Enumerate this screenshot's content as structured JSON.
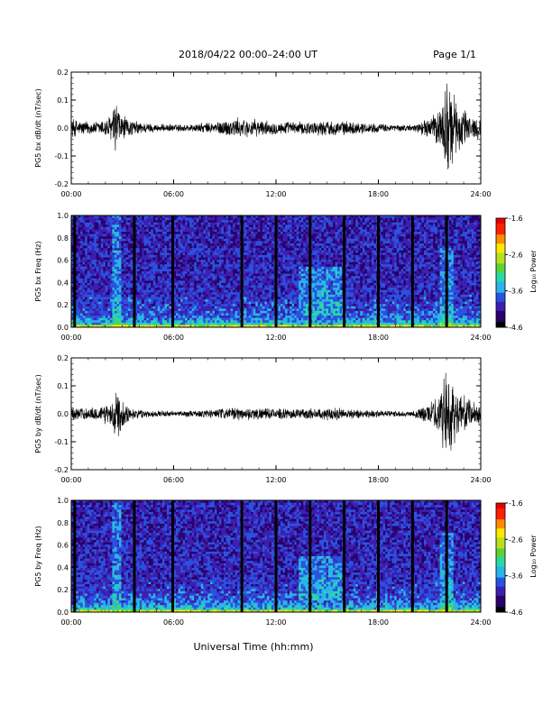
{
  "header": {
    "title": "2018/04/22  00:00–24:00 UT",
    "page": "Page 1/1"
  },
  "footer": {
    "xlabel": "Universal Time (hh:mm)"
  },
  "colorbar": {
    "label": "Log₁₀ Power",
    "ticks": [
      "-1.6",
      "-2.6",
      "-3.6",
      "-4.6"
    ],
    "range": [
      -4.6,
      -1.6
    ],
    "colors": [
      "#000000",
      "#2a006a",
      "#3c1fb0",
      "#2a52e0",
      "#2ab4e8",
      "#29d9a8",
      "#5ad238",
      "#b8e020",
      "#ffe800",
      "#ff8c00",
      "#ff2000",
      "#e80000"
    ]
  },
  "chart_data": [
    {
      "type": "line",
      "ylabel": "PG5 bx dB/dt (nT/sec)",
      "xticks": [
        "00:00",
        "06:00",
        "12:00",
        "18:00",
        "24:00"
      ],
      "yticks": [
        "0.2",
        "0.1",
        "0.0",
        "-0.1",
        "-0.2"
      ],
      "xlim": [
        0,
        24
      ],
      "ylim": [
        -0.2,
        0.2
      ],
      "envelope": [
        {
          "t": 0,
          "amp": 0.04
        },
        {
          "t": 0.5,
          "amp": 0.03
        },
        {
          "t": 1.5,
          "amp": 0.025
        },
        {
          "t": 2.3,
          "amp": 0.05
        },
        {
          "t": 2.65,
          "amp": 0.12
        },
        {
          "t": 2.85,
          "amp": 0.06
        },
        {
          "t": 3.5,
          "amp": 0.03
        },
        {
          "t": 5.0,
          "amp": 0.015
        },
        {
          "t": 7.0,
          "amp": 0.015
        },
        {
          "t": 8.5,
          "amp": 0.025
        },
        {
          "t": 9.5,
          "amp": 0.04
        },
        {
          "t": 10.5,
          "amp": 0.035
        },
        {
          "t": 12.0,
          "amp": 0.025
        },
        {
          "t": 13.5,
          "amp": 0.025
        },
        {
          "t": 15.0,
          "amp": 0.03
        },
        {
          "t": 16.5,
          "amp": 0.025
        },
        {
          "t": 18.5,
          "amp": 0.015
        },
        {
          "t": 20.0,
          "amp": 0.012
        },
        {
          "t": 21.0,
          "amp": 0.04
        },
        {
          "t": 21.6,
          "amp": 0.08
        },
        {
          "t": 22.0,
          "amp": 0.2
        },
        {
          "t": 22.5,
          "amp": 0.12
        },
        {
          "t": 23.2,
          "amp": 0.06
        },
        {
          "t": 24.0,
          "amp": 0.04
        }
      ]
    },
    {
      "type": "heatmap",
      "ylabel": "PG5 bx Freq (Hz)",
      "xticks": [
        "00:00",
        "06:00",
        "12:00",
        "18:00",
        "24:00"
      ],
      "yticks": [
        "1.0",
        "0.8",
        "0.6",
        "0.4",
        "0.2",
        "0.0"
      ],
      "xlim": [
        0,
        24
      ],
      "ylim": [
        0,
        1.0
      ],
      "data_gaps_hours": [
        0.2,
        3.7,
        5.95,
        10.0,
        12.0,
        14.0,
        16.0,
        18.0,
        20.0,
        22.0
      ],
      "enhanced_features": [
        {
          "t_start": 13.4,
          "t_end": 15.8,
          "f_low": 0.1,
          "f_high": 0.55
        },
        {
          "t_start": 2.4,
          "t_end": 2.9,
          "f_low": 0.0,
          "f_high": 1.0
        },
        {
          "t_start": 21.6,
          "t_end": 22.4,
          "f_low": 0.0,
          "f_high": 0.7
        }
      ]
    },
    {
      "type": "line",
      "ylabel": "PG5 by dB/dt (nT/sec)",
      "xticks": [
        "00:00",
        "06:00",
        "12:00",
        "18:00",
        "24:00"
      ],
      "yticks": [
        "0.2",
        "0.1",
        "0.0",
        "-0.1",
        "-0.2"
      ],
      "xlim": [
        0,
        24
      ],
      "ylim": [
        -0.2,
        0.2
      ],
      "envelope": [
        {
          "t": 0,
          "amp": 0.03
        },
        {
          "t": 0.5,
          "amp": 0.025
        },
        {
          "t": 1.5,
          "amp": 0.025
        },
        {
          "t": 2.3,
          "amp": 0.05
        },
        {
          "t": 2.65,
          "amp": 0.12
        },
        {
          "t": 2.85,
          "amp": 0.07
        },
        {
          "t": 3.5,
          "amp": 0.02
        },
        {
          "t": 5.0,
          "amp": 0.012
        },
        {
          "t": 7.0,
          "amp": 0.012
        },
        {
          "t": 8.5,
          "amp": 0.02
        },
        {
          "t": 10.0,
          "amp": 0.025
        },
        {
          "t": 12.0,
          "amp": 0.02
        },
        {
          "t": 13.5,
          "amp": 0.02
        },
        {
          "t": 15.0,
          "amp": 0.025
        },
        {
          "t": 16.5,
          "amp": 0.02
        },
        {
          "t": 18.5,
          "amp": 0.012
        },
        {
          "t": 20.0,
          "amp": 0.012
        },
        {
          "t": 21.0,
          "amp": 0.04
        },
        {
          "t": 21.6,
          "amp": 0.08
        },
        {
          "t": 22.0,
          "amp": 0.2
        },
        {
          "t": 22.5,
          "amp": 0.1
        },
        {
          "t": 23.2,
          "amp": 0.06
        },
        {
          "t": 24.0,
          "amp": 0.04
        }
      ]
    },
    {
      "type": "heatmap",
      "ylabel": "PG5 by Freq (Hz)",
      "xticks": [
        "00:00",
        "06:00",
        "12:00",
        "18:00",
        "24:00"
      ],
      "yticks": [
        "1.0",
        "0.8",
        "0.6",
        "0.4",
        "0.2",
        "0.0"
      ],
      "xlim": [
        0,
        24
      ],
      "ylim": [
        0,
        1.0
      ],
      "data_gaps_hours": [
        0.2,
        3.7,
        5.95,
        10.0,
        12.0,
        14.0,
        16.0,
        18.0,
        20.0,
        22.0
      ],
      "enhanced_features": [
        {
          "t_start": 13.4,
          "t_end": 15.8,
          "f_low": 0.1,
          "f_high": 0.5
        },
        {
          "t_start": 2.4,
          "t_end": 2.9,
          "f_low": 0.0,
          "f_high": 1.0
        },
        {
          "t_start": 21.6,
          "t_end": 22.4,
          "f_low": 0.0,
          "f_high": 0.7
        }
      ]
    }
  ]
}
